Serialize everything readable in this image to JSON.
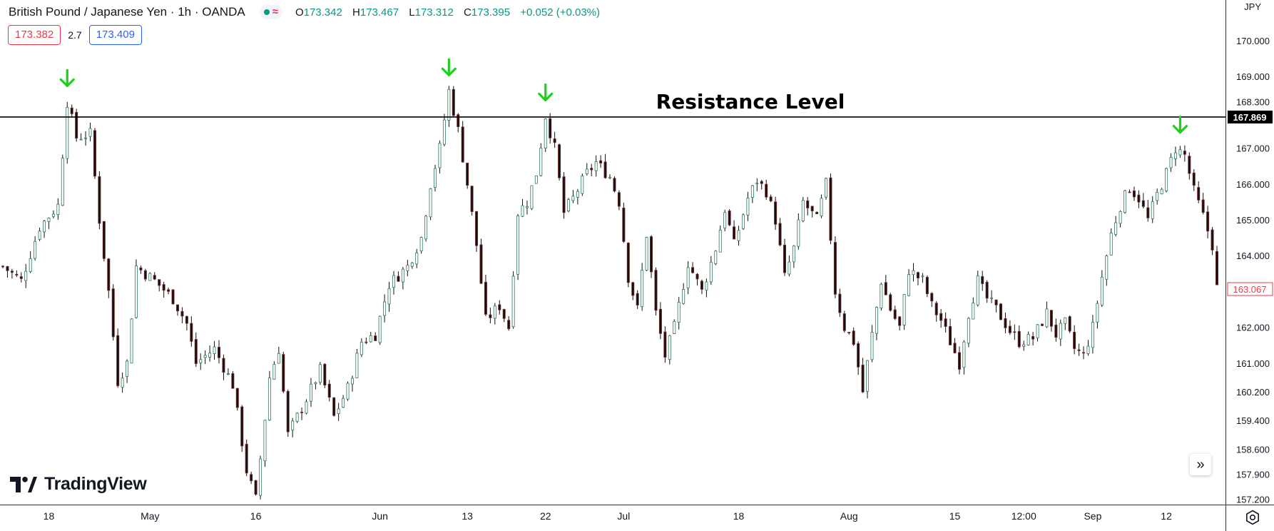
{
  "legend": {
    "symbol": "British Pound / Japanese Yen · 1h · OANDA",
    "status_icon": "market-open-dot",
    "wave_icon": "≈",
    "ohlc": {
      "o_label": "O",
      "o": "173.342",
      "h_label": "H",
      "h": "173.467",
      "l_label": "L",
      "l": "173.312",
      "c_label": "C",
      "c": "173.395",
      "change": "+0.052 (+0.03%)"
    }
  },
  "quotes": {
    "sell": "173.382",
    "spread": "2.7",
    "buy": "173.409"
  },
  "brand": {
    "name": "TradingView"
  },
  "controls": {
    "scroll_icon": "double-chevron-right-icon",
    "settings_icon": "gear-icon",
    "scroll_glyph": "»"
  },
  "chart_data": {
    "type": "candlestick",
    "title": "British Pound / Japanese Yen · 1h · OANDA",
    "ylabel": "JPY",
    "ylim": [
      157.0,
      170.6
    ],
    "y_ticks": [
      "170.000",
      "169.000",
      "168.300",
      "167.000",
      "166.000",
      "165.000",
      "164.000",
      "162.000",
      "161.000",
      "160.200",
      "159.400",
      "158.600",
      "157.900",
      "157.200"
    ],
    "y_tick_values": [
      170.0,
      169.0,
      168.3,
      167.0,
      166.0,
      165.0,
      164.0,
      162.0,
      161.0,
      160.2,
      159.4,
      158.6,
      157.9,
      157.2
    ],
    "x_ticks": [
      "18",
      "May",
      "16",
      "Jun",
      "13",
      "22",
      "Jul",
      "18",
      "Aug",
      "15",
      "12:00",
      "Sep",
      "12"
    ],
    "x_tick_index": [
      10,
      32,
      55,
      82,
      101,
      118,
      135,
      160,
      184,
      207,
      222,
      237,
      253
    ],
    "bar_count": 265,
    "resistance_level": {
      "price": 167.869,
      "label": "Resistance Level",
      "price_label": "167.869"
    },
    "last_price": {
      "price": 163.067,
      "label": "163.067"
    },
    "markers": [
      {
        "type": "arrow-down",
        "bar_index": 14,
        "color": "#1ed01e"
      },
      {
        "type": "arrow-down",
        "bar_index": 97,
        "color": "#1ed01e"
      },
      {
        "type": "arrow-down",
        "bar_index": 118,
        "color": "#1ed01e"
      },
      {
        "type": "arrow-down",
        "bar_index": 256,
        "color": "#1ed01e"
      }
    ],
    "path_anchors": [
      [
        0,
        163.7
      ],
      [
        4,
        163.3
      ],
      [
        8,
        164.8
      ],
      [
        12,
        165.4
      ],
      [
        14,
        168.3
      ],
      [
        16,
        167.3
      ],
      [
        19,
        167.4
      ],
      [
        21,
        165.0
      ],
      [
        23,
        163.0
      ],
      [
        25,
        160.5
      ],
      [
        27,
        161.0
      ],
      [
        29,
        163.7
      ],
      [
        33,
        163.3
      ],
      [
        37,
        162.8
      ],
      [
        40,
        162.1
      ],
      [
        42,
        161.0
      ],
      [
        46,
        161.4
      ],
      [
        50,
        160.4
      ],
      [
        53,
        158.0
      ],
      [
        55,
        157.2
      ],
      [
        58,
        160.6
      ],
      [
        60,
        161.4
      ],
      [
        62,
        159.0
      ],
      [
        64,
        159.5
      ],
      [
        66,
        160.0
      ],
      [
        69,
        160.8
      ],
      [
        72,
        159.5
      ],
      [
        75,
        160.3
      ],
      [
        78,
        161.6
      ],
      [
        81,
        161.8
      ],
      [
        84,
        163.2
      ],
      [
        88,
        163.7
      ],
      [
        91,
        164.5
      ],
      [
        93,
        166.0
      ],
      [
        95,
        167.0
      ],
      [
        97,
        168.6
      ],
      [
        99,
        167.5
      ],
      [
        101,
        166.0
      ],
      [
        103,
        164.3
      ],
      [
        105,
        162.2
      ],
      [
        108,
        162.6
      ],
      [
        110,
        162.0
      ],
      [
        112,
        165.2
      ],
      [
        114,
        165.5
      ],
      [
        116,
        166.3
      ],
      [
        118,
        167.9
      ],
      [
        120,
        167.0
      ],
      [
        122,
        165.2
      ],
      [
        124,
        165.6
      ],
      [
        127,
        166.3
      ],
      [
        129,
        166.6
      ],
      [
        132,
        166.2
      ],
      [
        134,
        165.5
      ],
      [
        136,
        163.4
      ],
      [
        138,
        162.5
      ],
      [
        140,
        164.6
      ],
      [
        142,
        162.4
      ],
      [
        144,
        161.2
      ],
      [
        146,
        162.0
      ],
      [
        149,
        163.8
      ],
      [
        152,
        163.0
      ],
      [
        155,
        164.2
      ],
      [
        157,
        165.3
      ],
      [
        159,
        164.3
      ],
      [
        162,
        165.6
      ],
      [
        164,
        166.1
      ],
      [
        166,
        165.8
      ],
      [
        168,
        165.0
      ],
      [
        170,
        163.4
      ],
      [
        172,
        164.2
      ],
      [
        174,
        165.5
      ],
      [
        177,
        165.0
      ],
      [
        179,
        166.0
      ],
      [
        181,
        163.0
      ],
      [
        183,
        162.0
      ],
      [
        185,
        161.6
      ],
      [
        187,
        160.2
      ],
      [
        189,
        161.8
      ],
      [
        191,
        163.3
      ],
      [
        193,
        162.5
      ],
      [
        195,
        162.0
      ],
      [
        197,
        163.6
      ],
      [
        200,
        163.3
      ],
      [
        202,
        162.6
      ],
      [
        204,
        162.2
      ],
      [
        206,
        161.6
      ],
      [
        208,
        161.0
      ],
      [
        210,
        162.4
      ],
      [
        212,
        163.3
      ],
      [
        214,
        162.8
      ],
      [
        216,
        162.5
      ],
      [
        219,
        161.9
      ],
      [
        221,
        161.6
      ],
      [
        224,
        161.7
      ],
      [
        227,
        162.4
      ],
      [
        229,
        161.8
      ],
      [
        231,
        162.1
      ],
      [
        233,
        161.4
      ],
      [
        235,
        161.2
      ],
      [
        237,
        162.0
      ],
      [
        239,
        163.4
      ],
      [
        241,
        164.6
      ],
      [
        243,
        165.4
      ],
      [
        245,
        165.9
      ],
      [
        247,
        165.6
      ],
      [
        249,
        165.0
      ],
      [
        251,
        165.7
      ],
      [
        253,
        166.3
      ],
      [
        255,
        167.0
      ],
      [
        257,
        166.8
      ],
      [
        259,
        165.8
      ],
      [
        261,
        165.1
      ],
      [
        263,
        164.3
      ],
      [
        264,
        163.1
      ]
    ]
  }
}
